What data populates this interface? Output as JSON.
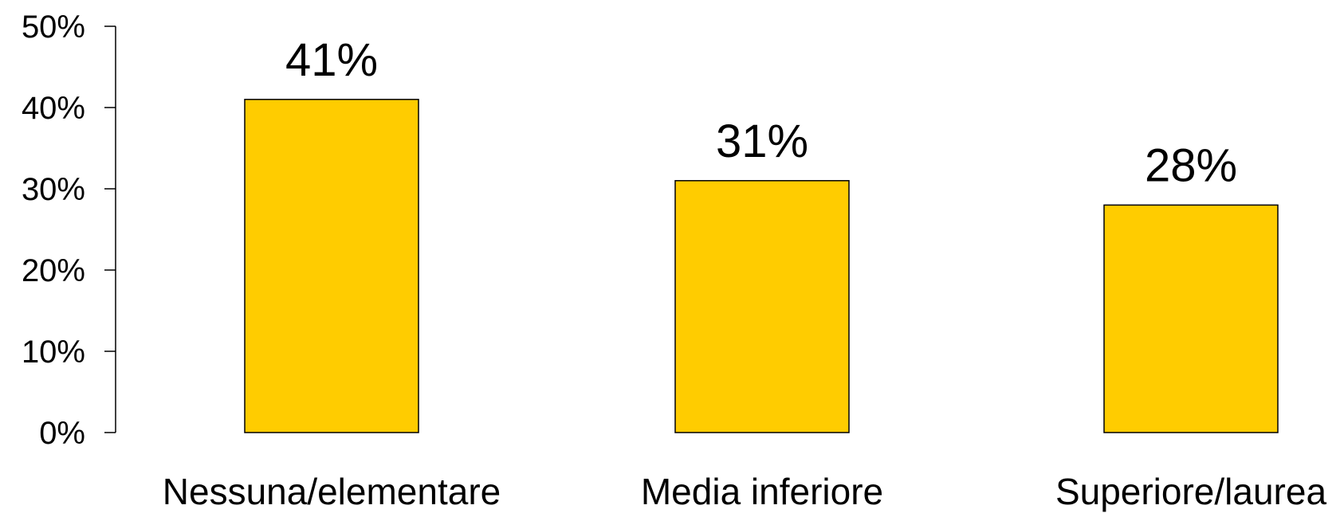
{
  "chart_data": {
    "type": "bar",
    "categories": [
      "Nessuna/elementare",
      "Media inferiore",
      "Superiore/laurea"
    ],
    "values": [
      41,
      31,
      28
    ],
    "data_labels": [
      "41%",
      "31%",
      "28%"
    ],
    "y_ticks": [
      {
        "value": 0,
        "label": "0%"
      },
      {
        "value": 10,
        "label": "10%"
      },
      {
        "value": 20,
        "label": "20%"
      },
      {
        "value": 30,
        "label": "30%"
      },
      {
        "value": 40,
        "label": "40%"
      },
      {
        "value": 50,
        "label": "50%"
      }
    ],
    "ylim": [
      0,
      50
    ],
    "grid": false,
    "legend": "none",
    "colors": {
      "bar_fill": "#FFCC00",
      "bar_stroke": "#000000",
      "axis": "#000000"
    }
  }
}
